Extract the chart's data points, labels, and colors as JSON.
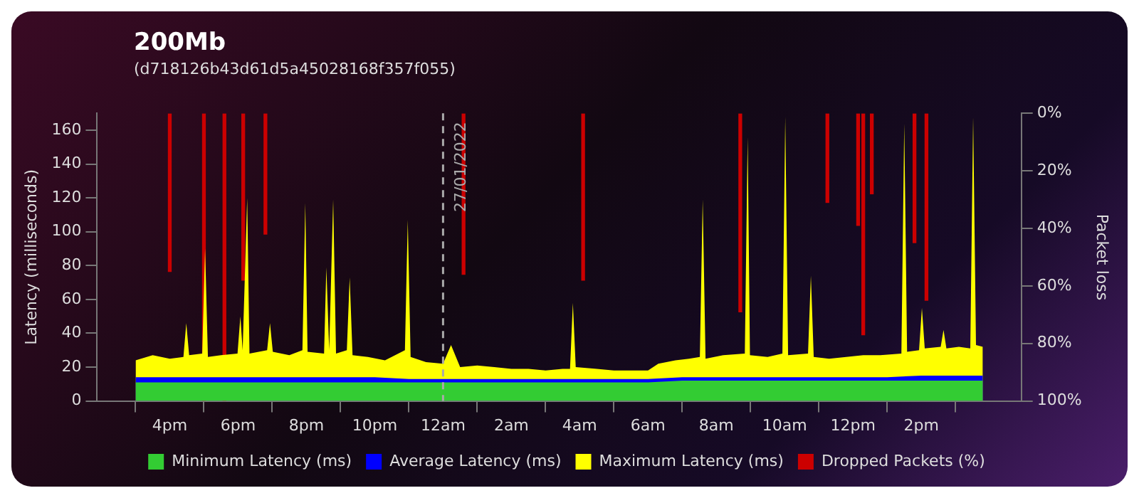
{
  "chart_data": {
    "type": "area",
    "title": "200Mb",
    "subtitle": "(d718126b43d61d5a45028168f357f055)",
    "ylabel": "Latency (milliseconds)",
    "y2label": "Packet loss",
    "legend": "bottom",
    "x": [
      "2022-01-26T15:00",
      "2022-01-26T16:00",
      "2022-01-26T17:00",
      "2022-01-26T18:00",
      "2022-01-26T19:00",
      "2022-01-26T20:00",
      "2022-01-26T21:00",
      "2022-01-26T22:00",
      "2022-01-26T23:00",
      "2022-01-27T00:00",
      "2022-01-27T01:00",
      "2022-01-27T02:00",
      "2022-01-27T03:00",
      "2022-01-27T04:00",
      "2022-01-27T05:00",
      "2022-01-27T06:00",
      "2022-01-27T07:00",
      "2022-01-27T08:00",
      "2022-01-27T09:00",
      "2022-01-27T10:00",
      "2022-01-27T11:00",
      "2022-01-27T12:00",
      "2022-01-27T13:00",
      "2022-01-27T14:00",
      "2022-01-27T15:00",
      "2022-01-27T15:48"
    ],
    "xlim": [
      "2022-01-26T15:00",
      "2022-01-27T15:48"
    ],
    "xticks": [
      {
        "value": "2022-01-26T16:00",
        "label": "4pm"
      },
      {
        "value": "2022-01-26T18:00",
        "label": "6pm"
      },
      {
        "value": "2022-01-26T20:00",
        "label": "8pm"
      },
      {
        "value": "2022-01-26T22:00",
        "label": "10pm"
      },
      {
        "value": "2022-01-27T00:00",
        "label": "12am"
      },
      {
        "value": "2022-01-27T02:00",
        "label": "2am"
      },
      {
        "value": "2022-01-27T04:00",
        "label": "4am"
      },
      {
        "value": "2022-01-27T06:00",
        "label": "6am"
      },
      {
        "value": "2022-01-27T08:00",
        "label": "8am"
      },
      {
        "value": "2022-01-27T10:00",
        "label": "10am"
      },
      {
        "value": "2022-01-27T12:00",
        "label": "12pm"
      },
      {
        "value": "2022-01-27T14:00",
        "label": "2pm"
      }
    ],
    "ylim": [
      0,
      170
    ],
    "yticks": [
      0,
      20,
      40,
      60,
      80,
      100,
      120,
      140,
      160
    ],
    "y2lim": [
      100,
      0
    ],
    "y2ticks": [
      {
        "value": 0,
        "label": "0%"
      },
      {
        "value": 20,
        "label": "20%"
      },
      {
        "value": 40,
        "label": "40%"
      },
      {
        "value": 60,
        "label": "60%"
      },
      {
        "value": 80,
        "label": "80%"
      },
      {
        "value": 100,
        "label": "100%"
      }
    ],
    "ref_lines": [
      {
        "axis": "x",
        "value": "2022-01-27T00:00",
        "label": "27/01/2022",
        "color": "#aaaaaa",
        "line_style": "dashed"
      }
    ],
    "series": [
      {
        "name": "Minimum Latency (ms)",
        "color": "#33cc33",
        "values": [
          11,
          11,
          11,
          11,
          11,
          11,
          11,
          11,
          11,
          11,
          11,
          11,
          11,
          11,
          11,
          11,
          12,
          12,
          12,
          12,
          12,
          12,
          12,
          12,
          12,
          12
        ]
      },
      {
        "name": "Average Latency (ms)",
        "color": "#0000ff",
        "values": [
          14,
          14,
          14,
          14,
          14,
          14,
          14,
          14,
          13,
          13,
          13,
          13,
          13,
          13,
          13,
          13,
          14,
          14,
          14,
          14,
          14,
          14,
          14,
          15,
          15,
          15
        ]
      },
      {
        "name": "Maximum Latency (ms)",
        "color": "#ffff00",
        "x": [
          "2022-01-26T15:00",
          "2022-01-26T15:30",
          "2022-01-26T16:00",
          "2022-01-26T16:24",
          "2022-01-26T16:29",
          "2022-01-26T16:34",
          "2022-01-26T16:57",
          "2022-01-26T17:02",
          "2022-01-26T17:07",
          "2022-01-26T17:30",
          "2022-01-26T17:59",
          "2022-01-26T18:04",
          "2022-01-26T18:08",
          "2022-01-26T18:16",
          "2022-01-26T18:20",
          "2022-01-26T18:51",
          "2022-01-26T18:56",
          "2022-01-26T19:01",
          "2022-01-26T19:30",
          "2022-01-26T19:53",
          "2022-01-26T19:58",
          "2022-01-26T20:02",
          "2022-01-26T20:31",
          "2022-01-26T20:35",
          "2022-01-26T20:40",
          "2022-01-26T20:47",
          "2022-01-26T20:52",
          "2022-01-26T21:11",
          "2022-01-26T21:16",
          "2022-01-26T21:21",
          "2022-01-26T21:48",
          "2022-01-26T22:18",
          "2022-01-26T22:53",
          "2022-01-26T22:58",
          "2022-01-26T23:03",
          "2022-01-26T23:30",
          "2022-01-27T00:00",
          "2022-01-27T00:14",
          "2022-01-27T00:30",
          "2022-01-27T01:00",
          "2022-01-27T01:30",
          "2022-01-27T02:00",
          "2022-01-27T02:30",
          "2022-01-27T03:00",
          "2022-01-27T03:30",
          "2022-01-27T03:43",
          "2022-01-27T03:48",
          "2022-01-27T03:53",
          "2022-01-27T04:30",
          "2022-01-27T05:00",
          "2022-01-27T05:30",
          "2022-01-27T06:00",
          "2022-01-27T06:18",
          "2022-01-27T06:48",
          "2022-01-27T07:12",
          "2022-01-27T07:31",
          "2022-01-27T07:36",
          "2022-01-27T07:41",
          "2022-01-27T08:12",
          "2022-01-27T08:50",
          "2022-01-27T08:55",
          "2022-01-27T08:59",
          "2022-01-27T09:30",
          "2022-01-27T09:56",
          "2022-01-27T10:01",
          "2022-01-27T10:06",
          "2022-01-27T10:41",
          "2022-01-27T10:46",
          "2022-01-27T10:51",
          "2022-01-27T11:18",
          "2022-01-27T11:48",
          "2022-01-27T12:18",
          "2022-01-27T12:48",
          "2022-01-27T13:25",
          "2022-01-27T13:30",
          "2022-01-27T13:35",
          "2022-01-27T13:56",
          "2022-01-27T14:01",
          "2022-01-27T14:06",
          "2022-01-27T14:34",
          "2022-01-27T14:39",
          "2022-01-27T14:44",
          "2022-01-27T15:06",
          "2022-01-27T15:26",
          "2022-01-27T15:31",
          "2022-01-27T15:36",
          "2022-01-27T15:48"
        ],
        "values": [
          24,
          27,
          25,
          26,
          46,
          27,
          28,
          90,
          26,
          27,
          28,
          50,
          30,
          120,
          28,
          30,
          46,
          29,
          27,
          30,
          117,
          29,
          28,
          79,
          30,
          119,
          28,
          30,
          73,
          27,
          26,
          24,
          30,
          107,
          26,
          23,
          22,
          33,
          20,
          21,
          20,
          19,
          19,
          18,
          19,
          19,
          58,
          20,
          19,
          18,
          18,
          18,
          22,
          24,
          25,
          26,
          119,
          25,
          27,
          28,
          156,
          27,
          26,
          28,
          168,
          27,
          28,
          74,
          26,
          25,
          26,
          27,
          27,
          28,
          164,
          29,
          30,
          55,
          31,
          32,
          42,
          31,
          32,
          31,
          168,
          33,
          32
        ]
      },
      {
        "name": "Dropped Packets (%)",
        "type": "bar",
        "axis": "y2",
        "color": "#cc0000",
        "x": [
          "2022-01-26T16:00",
          "2022-01-26T17:00",
          "2022-01-26T17:36",
          "2022-01-26T18:09",
          "2022-01-26T18:48",
          "2022-01-27T00:36",
          "2022-01-27T04:06",
          "2022-01-27T08:42",
          "2022-01-27T11:15",
          "2022-01-27T12:09",
          "2022-01-27T12:18",
          "2022-01-27T12:33",
          "2022-01-27T13:48",
          "2022-01-27T14:09"
        ],
        "values": [
          55,
          100,
          100,
          58,
          42,
          56,
          58,
          69,
          31,
          39,
          77,
          28,
          45,
          65
        ]
      }
    ]
  }
}
